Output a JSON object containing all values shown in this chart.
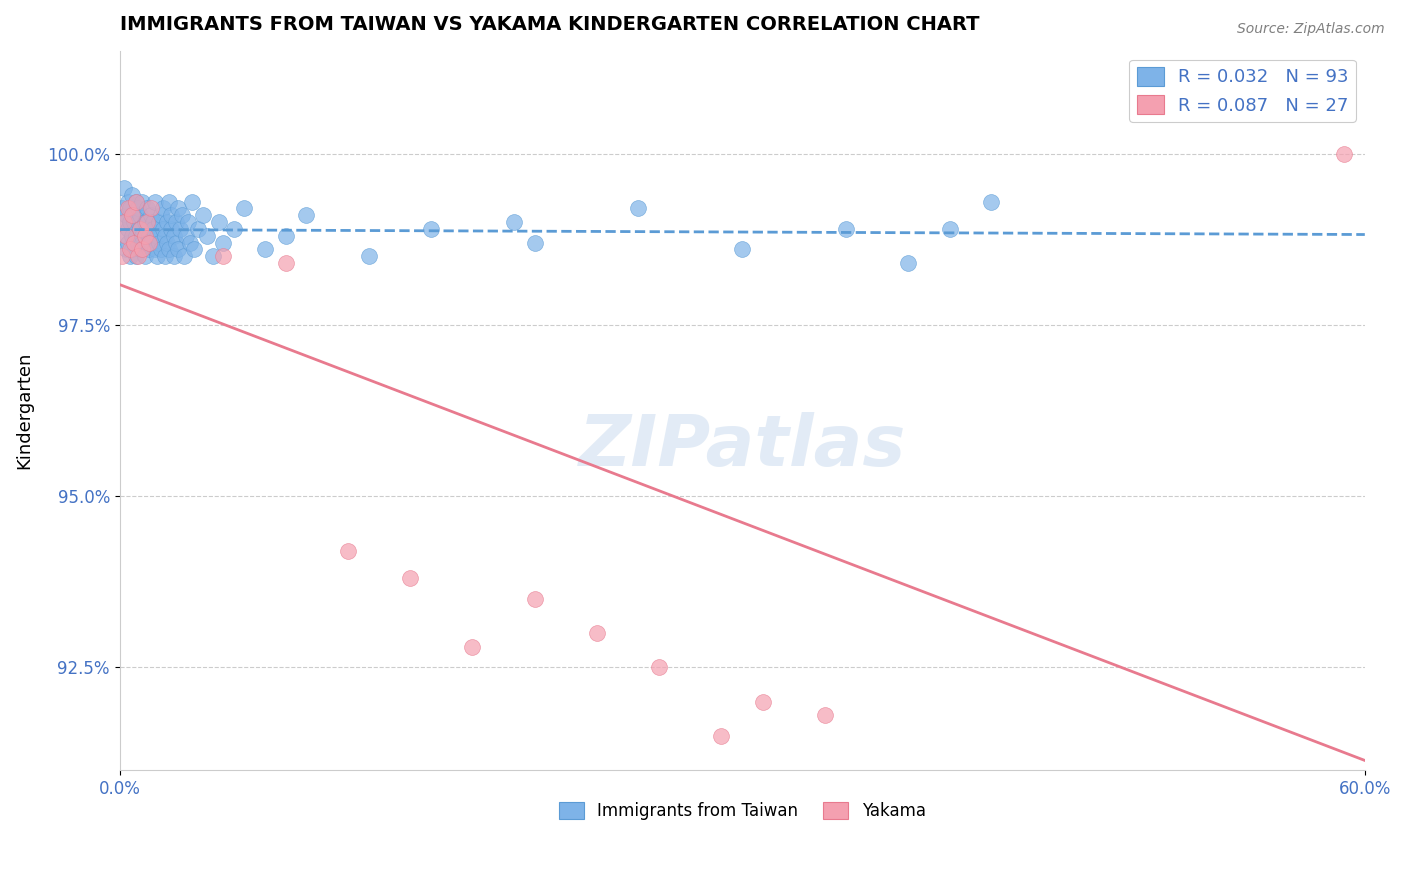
{
  "title": "IMMIGRANTS FROM TAIWAN VS YAKAMA KINDERGARTEN CORRELATION CHART",
  "source": "Source: ZipAtlas.com",
  "ylabel": "Kindergarten",
  "x_min": 0.0,
  "x_max": 0.6,
  "y_min": 91.0,
  "y_max": 101.5,
  "yticks": [
    92.5,
    95.0,
    97.5,
    100.0
  ],
  "ytick_labels": [
    "92.5%",
    "95.0%",
    "97.5%",
    "100.0%"
  ],
  "xtick_labels": [
    "0.0%",
    "60.0%"
  ],
  "legend_label1": "R = 0.032   N = 93",
  "legend_label2": "R = 0.087   N = 27",
  "bottom_label1": "Immigrants from Taiwan",
  "bottom_label2": "Yakama",
  "color_blue": "#7EB3E8",
  "color_pink": "#F4A0B0",
  "color_blue_dark": "#5B9BD5",
  "color_pink_dark": "#E87A8E",
  "color_axis_text": "#4472C4",
  "color_legend_text": "#4472C4",
  "scatter_alpha": 0.7,
  "taiwan_x": [
    0.001,
    0.002,
    0.002,
    0.003,
    0.003,
    0.003,
    0.004,
    0.004,
    0.004,
    0.005,
    0.005,
    0.005,
    0.006,
    0.006,
    0.006,
    0.007,
    0.007,
    0.007,
    0.008,
    0.008,
    0.008,
    0.009,
    0.009,
    0.009,
    0.01,
    0.01,
    0.01,
    0.011,
    0.011,
    0.011,
    0.012,
    0.012,
    0.013,
    0.013,
    0.014,
    0.014,
    0.015,
    0.015,
    0.016,
    0.016,
    0.017,
    0.017,
    0.018,
    0.018,
    0.019,
    0.019,
    0.02,
    0.02,
    0.021,
    0.021,
    0.022,
    0.022,
    0.023,
    0.023,
    0.024,
    0.024,
    0.025,
    0.025,
    0.026,
    0.026,
    0.027,
    0.027,
    0.028,
    0.028,
    0.029,
    0.03,
    0.031,
    0.032,
    0.033,
    0.034,
    0.035,
    0.036,
    0.038,
    0.04,
    0.042,
    0.045,
    0.048,
    0.05,
    0.055,
    0.06,
    0.07,
    0.08,
    0.09,
    0.12,
    0.15,
    0.19,
    0.2,
    0.25,
    0.3,
    0.35,
    0.38,
    0.4,
    0.42
  ],
  "taiwan_y": [
    99.2,
    99.5,
    99.0,
    98.8,
    99.1,
    98.6,
    99.3,
    98.9,
    98.7,
    99.0,
    98.5,
    99.2,
    98.8,
    99.4,
    98.6,
    99.1,
    98.7,
    99.0,
    98.8,
    99.3,
    98.5,
    99.0,
    98.7,
    99.2,
    98.6,
    98.9,
    99.1,
    98.8,
    99.3,
    98.7,
    99.0,
    98.5,
    98.9,
    99.2,
    98.6,
    98.8,
    99.1,
    98.7,
    99.0,
    98.9,
    98.6,
    99.3,
    98.8,
    98.5,
    99.0,
    98.7,
    99.1,
    98.6,
    98.9,
    99.2,
    98.5,
    98.8,
    99.0,
    98.7,
    99.3,
    98.6,
    98.9,
    99.1,
    98.8,
    98.5,
    99.0,
    98.7,
    99.2,
    98.6,
    98.9,
    99.1,
    98.5,
    98.8,
    99.0,
    98.7,
    99.3,
    98.6,
    98.9,
    99.1,
    98.8,
    98.5,
    99.0,
    98.7,
    98.9,
    99.2,
    98.6,
    98.8,
    99.1,
    98.5,
    98.9,
    99.0,
    98.7,
    99.2,
    98.6,
    98.9,
    98.4,
    98.9,
    99.3
  ],
  "yakama_x": [
    0.001,
    0.002,
    0.003,
    0.004,
    0.005,
    0.006,
    0.007,
    0.008,
    0.009,
    0.01,
    0.011,
    0.012,
    0.013,
    0.014,
    0.015,
    0.05,
    0.08,
    0.11,
    0.14,
    0.17,
    0.2,
    0.23,
    0.26,
    0.29,
    0.31,
    0.34,
    0.59
  ],
  "yakama_y": [
    98.5,
    99.0,
    98.8,
    99.2,
    98.6,
    99.1,
    98.7,
    99.3,
    98.5,
    98.9,
    98.6,
    98.8,
    99.0,
    98.7,
    99.2,
    98.5,
    98.4,
    94.2,
    93.8,
    92.8,
    93.5,
    93.0,
    92.5,
    91.5,
    92.0,
    91.8,
    100.0
  ]
}
